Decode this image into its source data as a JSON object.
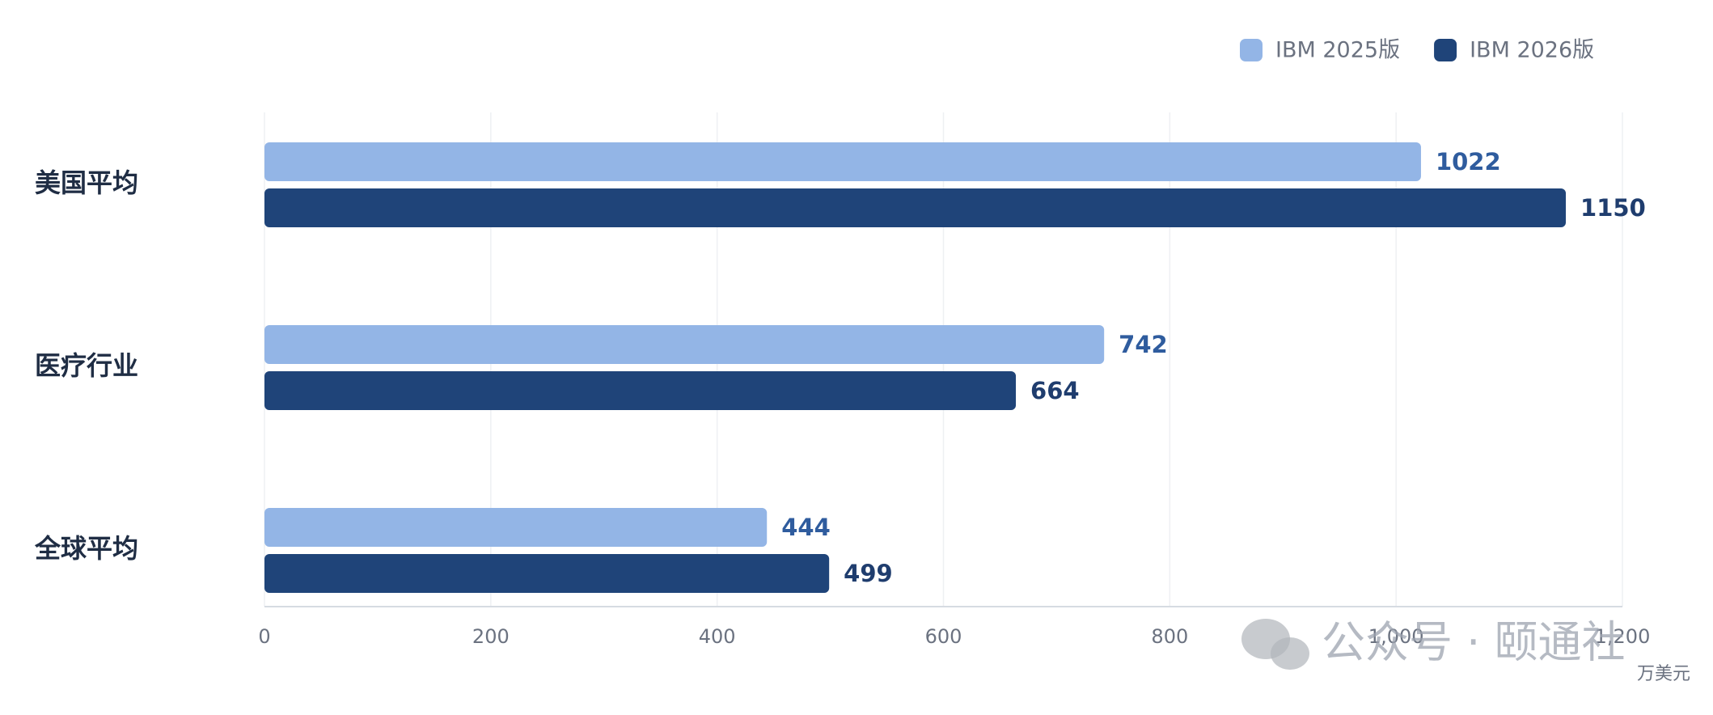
{
  "chart_data": {
    "type": "hbar",
    "categories": [
      "美国平均",
      "医疗行业",
      "全球平均"
    ],
    "series": [
      {
        "name": "IBM 2025版",
        "color": "#93b5e6",
        "label_color": "#2f5c9e",
        "values": [
          1022,
          742,
          444
        ]
      },
      {
        "name": "IBM 2026版",
        "color": "#1f4479",
        "label_color": "#1f3d6e",
        "values": [
          1150,
          664,
          499
        ]
      }
    ],
    "xlim": [
      0,
      1200
    ],
    "xticks": [
      0,
      200,
      400,
      600,
      800,
      {
        "value": 1000,
        "label": "1,000"
      },
      {
        "value": 1200,
        "label": "1,200"
      }
    ],
    "x_unit": "万美元",
    "grid": true,
    "legend": "top-right",
    "watermark": "公众号 · 颐通社"
  }
}
